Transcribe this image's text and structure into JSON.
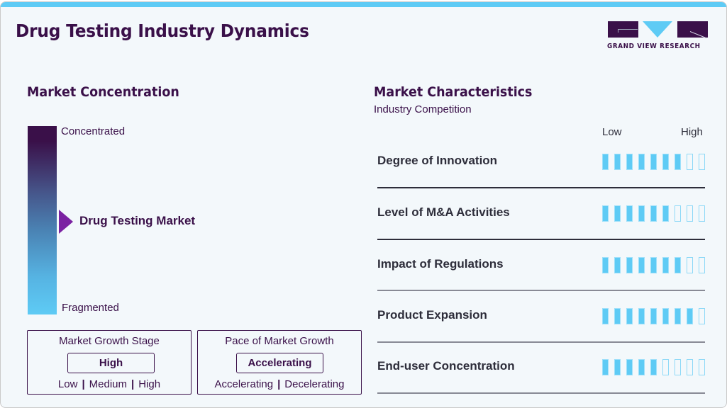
{
  "header": {
    "title": "Drug Testing Industry Dynamics",
    "logo_text": "GRAND VIEW RESEARCH"
  },
  "market_concentration": {
    "title": "Market Concentration",
    "scale_top": "Concentrated",
    "scale_bottom": "Fragmented",
    "marker_label": "Drug Testing Market",
    "colors": {
      "top": "#3a1049",
      "bottom": "#5ecbf5",
      "marker": "#7b22a2"
    }
  },
  "market_growth_stage": {
    "title": "Market Growth Stage",
    "value": "High",
    "options": [
      "Low",
      "Medium",
      "High"
    ]
  },
  "pace_of_market_growth": {
    "title": "Pace of Market Growth",
    "value": "Accelerating",
    "options": [
      "Accelerating",
      "Decelerating"
    ]
  },
  "market_characteristics": {
    "title": "Market Characteristics",
    "subtitle": "Industry Competition",
    "scale_low": "Low",
    "scale_high": "High",
    "max_score": 9,
    "rows": [
      {
        "label": "Degree of Innovation",
        "score": 7
      },
      {
        "label": "Level of M&A Activities",
        "score": 6
      },
      {
        "label": "Impact of Regulations",
        "score": 7
      },
      {
        "label": "Product Expansion",
        "score": 8
      },
      {
        "label": "End-user Concentration",
        "score": 5
      }
    ],
    "colors": {
      "filled": "#5ecbf5",
      "empty_border": "#8fd9f7"
    }
  }
}
